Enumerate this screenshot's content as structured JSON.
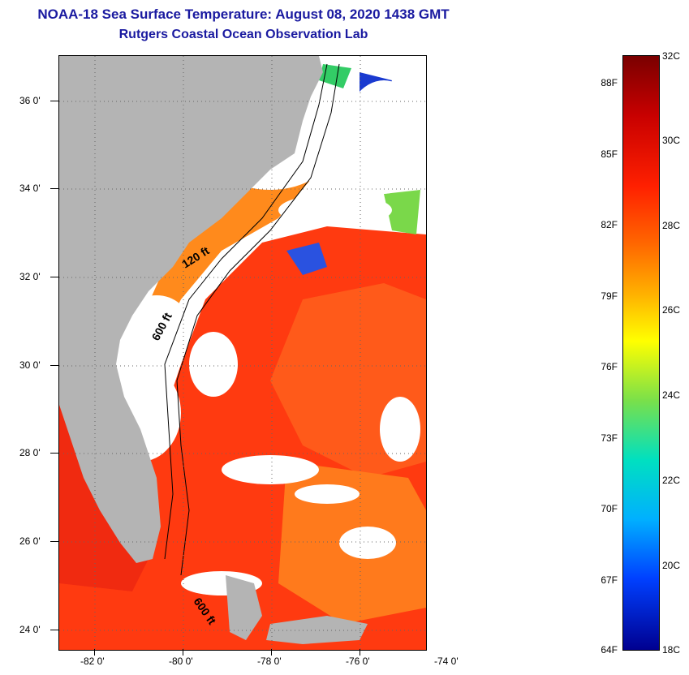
{
  "header": {
    "title": "NOAA-18 Sea Surface Temperature:  August 08, 2020 1438 GMT",
    "subtitle": "Rutgers Coastal Ocean Observation Lab"
  },
  "map": {
    "lat_labels": [
      "36 0'",
      "34 0'",
      "32 0'",
      "30 0'",
      "28 0'",
      "26 0'",
      "24 0'"
    ],
    "lon_labels": [
      "-82 0'",
      "-80 0'",
      "-78 0'",
      "-76 0'",
      "-74 0'"
    ],
    "contour_labels": {
      "c120": "120 ft",
      "c600a": "600 ft",
      "c600b": "600 ft"
    },
    "colors": {
      "land": "#b4b4b4",
      "cloud": "#ffffff",
      "warm": "#ff3300",
      "orange": "#ff7a00"
    }
  },
  "colorbar": {
    "f_labels": [
      "88F",
      "85F",
      "82F",
      "79F",
      "76F",
      "73F",
      "70F",
      "67F",
      "64F"
    ],
    "c_labels": [
      "32C",
      "30C",
      "28C",
      "26C",
      "24C",
      "22C",
      "20C",
      "18C"
    ],
    "range_c": [
      18,
      32
    ],
    "range_f": [
      64,
      89.6
    ]
  }
}
